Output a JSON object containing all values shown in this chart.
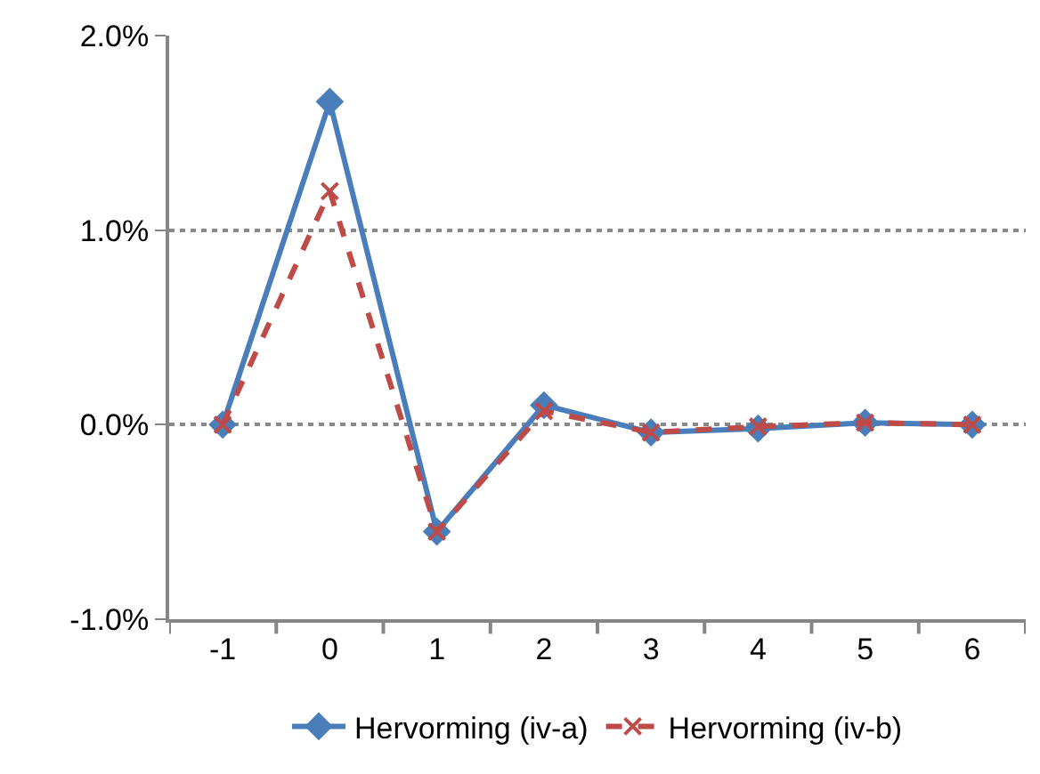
{
  "chart_data": {
    "type": "line",
    "categories": [
      "-1",
      "0",
      "1",
      "2",
      "3",
      "4",
      "5",
      "6"
    ],
    "series": [
      {
        "name": "Hervorming (iv-a)",
        "color": "#4a7ebb",
        "marker": "diamond",
        "line_style": "solid",
        "values": [
          0.0,
          1.66,
          -0.55,
          0.1,
          -0.04,
          -0.02,
          0.01,
          0.0
        ]
      },
      {
        "name": "Hervorming (iv-b)",
        "color": "#be4b48",
        "marker": "cross",
        "line_style": "dashed",
        "values": [
          0.0,
          1.2,
          -0.55,
          0.07,
          -0.04,
          -0.01,
          0.01,
          0.0
        ]
      }
    ],
    "ylim": [
      -1.0,
      2.0
    ],
    "yticks": [
      {
        "value": -1.0,
        "label": "-1.0%"
      },
      {
        "value": 0.0,
        "label": "0.0%"
      },
      {
        "value": 1.0,
        "label": "1.0%"
      },
      {
        "value": 2.0,
        "label": "2.0%"
      }
    ],
    "grid": "y",
    "legend": "bottom"
  }
}
